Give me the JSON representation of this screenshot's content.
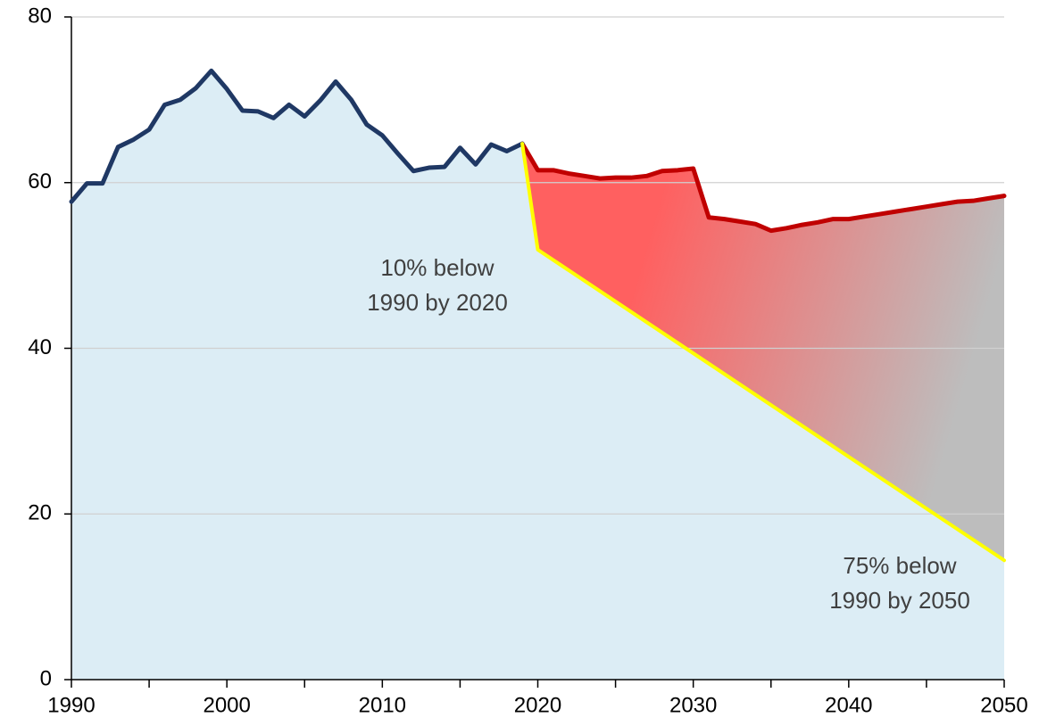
{
  "chart_data": {
    "type": "line",
    "xlim": [
      1990,
      2050
    ],
    "xticks": [
      1990,
      2000,
      2010,
      2020,
      2030,
      2040,
      2050
    ],
    "xticks_minor": [
      1995,
      2005,
      2015,
      2025,
      2035,
      2045
    ],
    "ylim": [
      0,
      80
    ],
    "yticks": [
      0,
      20,
      40,
      60,
      80
    ],
    "grid": true,
    "area_color": "#dcedf5",
    "series": [
      {
        "color": "#1f3864",
        "x": [
          1990,
          1991,
          1992,
          1993,
          1994,
          1995,
          1996,
          1997,
          1998,
          1999,
          2000,
          2001,
          2002,
          2003,
          2004,
          2005,
          2006,
          2007,
          2008,
          2009,
          2010,
          2011,
          2012,
          2013,
          2014,
          2015,
          2016,
          2017,
          2018,
          2019
        ],
        "values": [
          57.7,
          59.9,
          59.9,
          64.3,
          65.2,
          66.4,
          69.4,
          70.0,
          71.4,
          73.5,
          71.3,
          68.7,
          68.6,
          67.8,
          69.4,
          68.0,
          69.9,
          72.2,
          70.0,
          67.0,
          65.7,
          63.5,
          61.4,
          61.8,
          61.9,
          64.2,
          62.2,
          64.6,
          63.8,
          64.7
        ]
      },
      {
        "color": "#c00000",
        "fill_gradient": [
          "#ff6060",
          "#bdbdbd"
        ],
        "x": [
          2019,
          2020,
          2021,
          2022,
          2023,
          2024,
          2025,
          2026,
          2027,
          2028,
          2029,
          2030,
          2031,
          2032,
          2033,
          2034,
          2035,
          2036,
          2037,
          2038,
          2039,
          2040,
          2041,
          2042,
          2043,
          2044,
          2045,
          2046,
          2047,
          2048,
          2049,
          2050
        ],
        "values": [
          64.7,
          61.5,
          61.5,
          61.1,
          60.8,
          60.5,
          60.6,
          60.6,
          60.8,
          61.4,
          61.5,
          61.7,
          55.8,
          55.6,
          55.3,
          55.0,
          54.2,
          54.5,
          54.9,
          55.2,
          55.6,
          55.6,
          55.9,
          56.2,
          56.5,
          56.8,
          57.1,
          57.4,
          57.7,
          57.8,
          58.1,
          58.4
        ]
      },
      {
        "color": "#ffff00",
        "x": [
          2019,
          2020,
          2050
        ],
        "values": [
          64.7,
          51.9,
          14.4
        ]
      }
    ],
    "annotations": [
      {
        "lines": [
          "10% below",
          "1990 by 2020"
        ]
      },
      {
        "lines": [
          "75% below",
          "1990 by 2050"
        ]
      }
    ]
  }
}
